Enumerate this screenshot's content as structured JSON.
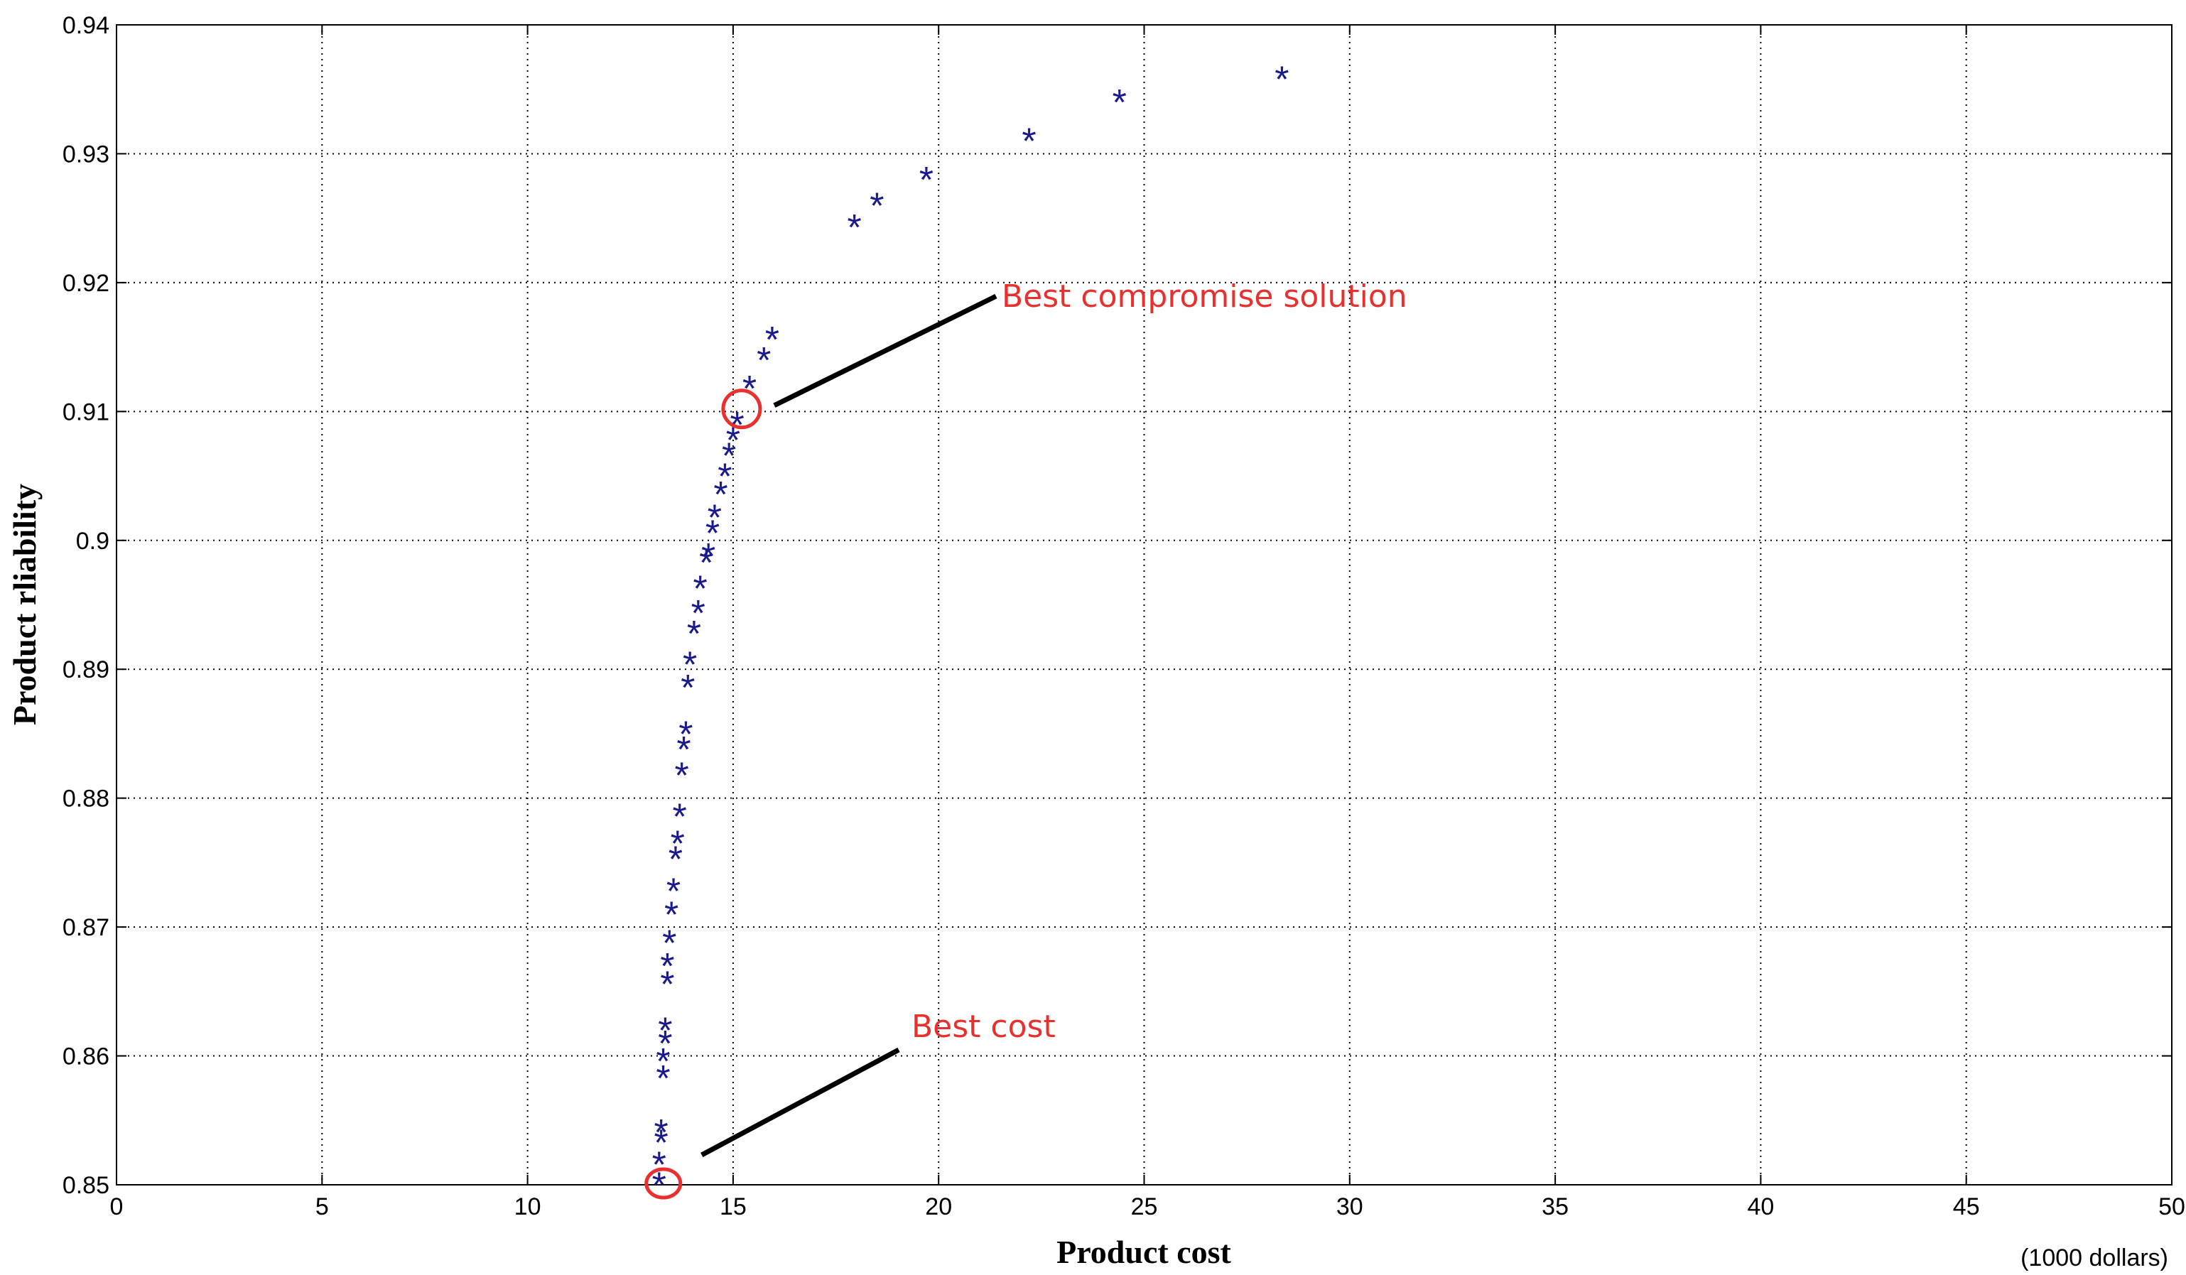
{
  "chart_data": {
    "type": "scatter",
    "xlabel": "Product cost",
    "ylabel": "Product rliability",
    "x_unit": "(1000 dollars)",
    "xlim": [
      0,
      50
    ],
    "ylim": [
      0.85,
      0.94
    ],
    "x_ticks": [
      "0",
      "5",
      "10",
      "15",
      "20",
      "25",
      "30",
      "35",
      "40",
      "45",
      "50"
    ],
    "y_ticks": [
      "0.85",
      "0.86",
      "0.87",
      "0.88",
      "0.89",
      "0.9",
      "0.91",
      "0.92",
      "0.93",
      "0.94"
    ],
    "grid": true,
    "marker": "*",
    "marker_color": "#1a1a8c",
    "annotation_color": "#e8302f",
    "points": [
      [
        13.2,
        0.8502
      ],
      [
        13.2,
        0.8518
      ],
      [
        13.25,
        0.8535
      ],
      [
        13.25,
        0.8543
      ],
      [
        13.3,
        0.8585
      ],
      [
        13.3,
        0.8598
      ],
      [
        13.35,
        0.8612
      ],
      [
        13.35,
        0.8622
      ],
      [
        13.4,
        0.8658
      ],
      [
        13.4,
        0.8672
      ],
      [
        13.45,
        0.869
      ],
      [
        13.5,
        0.8712
      ],
      [
        13.55,
        0.873
      ],
      [
        13.6,
        0.8755
      ],
      [
        13.65,
        0.8767
      ],
      [
        13.7,
        0.8788
      ],
      [
        13.75,
        0.882
      ],
      [
        13.8,
        0.884
      ],
      [
        13.85,
        0.8852
      ],
      [
        13.9,
        0.8888
      ],
      [
        13.95,
        0.8906
      ],
      [
        14.05,
        0.893
      ],
      [
        14.15,
        0.8946
      ],
      [
        14.2,
        0.8965
      ],
      [
        14.35,
        0.8985
      ],
      [
        14.4,
        0.899
      ],
      [
        14.5,
        0.9008
      ],
      [
        14.55,
        0.902
      ],
      [
        14.7,
        0.9038
      ],
      [
        14.8,
        0.9052
      ],
      [
        14.9,
        0.9068
      ],
      [
        15.0,
        0.908
      ],
      [
        15.1,
        0.9092
      ],
      [
        15.4,
        0.912
      ],
      [
        15.75,
        0.9142
      ],
      [
        15.95,
        0.9158
      ],
      [
        17.95,
        0.9245
      ],
      [
        18.5,
        0.9262
      ],
      [
        19.7,
        0.9282
      ],
      [
        22.2,
        0.9312
      ],
      [
        24.4,
        0.9342
      ],
      [
        28.35,
        0.936
      ]
    ],
    "annotations": [
      {
        "text": "Best compromise solution",
        "x": 15.0,
        "y": 0.9102
      },
      {
        "text": "Best cost",
        "x": 13.2,
        "y": 0.85
      }
    ]
  }
}
